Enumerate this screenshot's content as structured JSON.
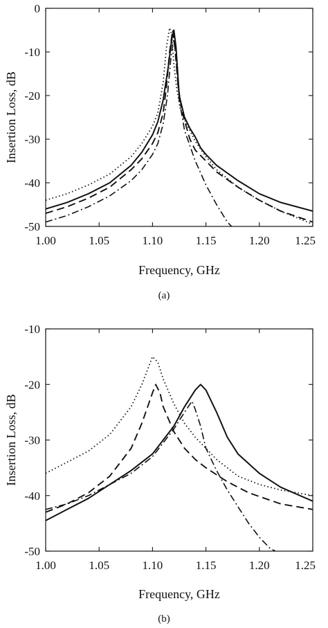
{
  "chart_data": [
    {
      "type": "line",
      "caption": "(a)",
      "xlabel": "Frequency, GHz",
      "ylabel": "Insertion Loss, dB",
      "xlim": [
        1.0,
        1.25
      ],
      "ylim": [
        -50,
        0
      ],
      "xticks": [
        "1.00",
        "1.05",
        "1.10",
        "1.15",
        "1.20",
        "1.25"
      ],
      "yticks": [
        "0",
        "-10",
        "-20",
        "-30",
        "-40",
        "-50"
      ],
      "grid": false,
      "series": [
        {
          "style": "solid",
          "x": [
            1.0,
            1.02,
            1.04,
            1.06,
            1.08,
            1.09,
            1.1,
            1.105,
            1.11,
            1.115,
            1.118,
            1.12,
            1.122,
            1.125,
            1.13,
            1.135,
            1.14,
            1.145,
            1.15,
            1.16,
            1.18,
            1.2,
            1.22,
            1.25
          ],
          "y": [
            -46,
            -44.5,
            -42.5,
            -40,
            -36,
            -33,
            -29,
            -26,
            -21,
            -13,
            -7,
            -5,
            -9,
            -20,
            -25,
            -27.5,
            -29.5,
            -32,
            -33.5,
            -36,
            -39.5,
            -42.5,
            -44.5,
            -46.5
          ]
        },
        {
          "style": "dotted",
          "x": [
            1.0,
            1.02,
            1.04,
            1.06,
            1.08,
            1.09,
            1.1,
            1.105,
            1.11,
            1.113,
            1.116,
            1.118,
            1.12,
            1.123,
            1.126,
            1.13,
            1.135,
            1.14,
            1.15,
            1.16,
            1.18,
            1.2,
            1.22,
            1.25
          ],
          "y": [
            -44,
            -42.5,
            -40.5,
            -38,
            -34,
            -31,
            -27,
            -24,
            -17,
            -9,
            -4.5,
            -6,
            -13,
            -19,
            -23,
            -25.5,
            -28,
            -30.5,
            -34,
            -37,
            -41,
            -44,
            -46.5,
            -49.5
          ]
        },
        {
          "style": "dashed",
          "x": [
            1.0,
            1.02,
            1.04,
            1.06,
            1.08,
            1.09,
            1.1,
            1.105,
            1.11,
            1.113,
            1.116,
            1.118,
            1.119,
            1.121,
            1.124,
            1.128,
            1.135,
            1.14,
            1.15,
            1.16,
            1.18,
            1.2,
            1.22,
            1.25
          ],
          "y": [
            -47,
            -45.5,
            -43.5,
            -41,
            -37,
            -34.5,
            -31,
            -28.5,
            -24,
            -18,
            -10,
            -6.5,
            -5,
            -9,
            -18,
            -24,
            -30,
            -32.5,
            -35,
            -37.5,
            -41,
            -44,
            -46.5,
            -49
          ]
        },
        {
          "style": "dash-dot",
          "x": [
            1.0,
            1.02,
            1.04,
            1.06,
            1.08,
            1.09,
            1.1,
            1.105,
            1.11,
            1.114,
            1.117,
            1.119,
            1.12,
            1.122,
            1.125,
            1.13,
            1.14,
            1.15,
            1.16,
            1.17,
            1.174
          ],
          "y": [
            -49,
            -47.5,
            -45.5,
            -43,
            -39.5,
            -37,
            -33.5,
            -31,
            -26.5,
            -20,
            -12,
            -8,
            -7,
            -12,
            -21,
            -28,
            -35,
            -40.5,
            -45,
            -49,
            -50
          ]
        }
      ]
    },
    {
      "type": "line",
      "caption": "(b)",
      "xlabel": "Frequency, GHz",
      "ylabel": "Insertion Loss, dB",
      "xlim": [
        1.0,
        1.25
      ],
      "ylim": [
        -50,
        -10
      ],
      "xticks": [
        "1.00",
        "1.05",
        "1.10",
        "1.15",
        "1.20",
        "1.25"
      ],
      "yticks": [
        "-10",
        "-20",
        "-30",
        "-40",
        "-50"
      ],
      "grid": false,
      "series": [
        {
          "style": "solid",
          "x": [
            1.0,
            1.02,
            1.04,
            1.06,
            1.08,
            1.1,
            1.12,
            1.13,
            1.14,
            1.145,
            1.15,
            1.16,
            1.17,
            1.18,
            1.2,
            1.22,
            1.25
          ],
          "y": [
            -44.5,
            -42.5,
            -40.5,
            -38,
            -35.5,
            -32.5,
            -27.5,
            -24,
            -21,
            -20,
            -21,
            -25,
            -29.5,
            -32.5,
            -36,
            -38.5,
            -41
          ]
        },
        {
          "style": "dotted",
          "x": [
            1.0,
            1.02,
            1.04,
            1.06,
            1.08,
            1.09,
            1.1,
            1.105,
            1.11,
            1.12,
            1.13,
            1.14,
            1.15,
            1.16,
            1.18,
            1.2,
            1.22,
            1.25
          ],
          "y": [
            -36,
            -34,
            -32,
            -29,
            -24,
            -20,
            -15,
            -16,
            -19,
            -23.5,
            -27,
            -29.5,
            -31.5,
            -33.5,
            -36.5,
            -38,
            -39,
            -40
          ]
        },
        {
          "style": "dashed",
          "x": [
            1.0,
            1.02,
            1.04,
            1.06,
            1.08,
            1.09,
            1.1,
            1.103,
            1.107,
            1.11,
            1.12,
            1.13,
            1.14,
            1.15,
            1.17,
            1.19,
            1.22,
            1.25
          ],
          "y": [
            -43,
            -41.5,
            -39.5,
            -36.5,
            -31.5,
            -27,
            -21.5,
            -20,
            -21.5,
            -24,
            -28.5,
            -31.5,
            -33.5,
            -35,
            -37.5,
            -39.5,
            -41.5,
            -42.5
          ]
        },
        {
          "style": "dash-dot",
          "x": [
            1.0,
            1.02,
            1.04,
            1.06,
            1.08,
            1.1,
            1.12,
            1.13,
            1.137,
            1.14,
            1.145,
            1.15,
            1.16,
            1.17,
            1.18,
            1.19,
            1.2,
            1.21,
            1.215
          ],
          "y": [
            -42.5,
            -41.5,
            -40,
            -38,
            -36,
            -33,
            -28,
            -25,
            -23,
            -24.5,
            -27.5,
            -31.5,
            -35.5,
            -39,
            -42,
            -45,
            -47.5,
            -49.5,
            -50
          ]
        }
      ]
    }
  ]
}
